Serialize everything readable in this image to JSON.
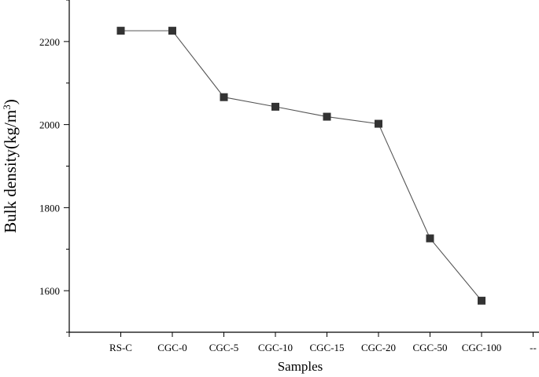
{
  "chart_data": {
    "type": "line",
    "title": "",
    "xlabel": "Samples",
    "ylabel": {
      "base": "Bulk density(kg/m",
      "sup": "3",
      "close": ")"
    },
    "categories": [
      "RS-C",
      "CGC-0",
      "CGC-5",
      "CGC-10",
      "CGC-15",
      "CGC-20",
      "CGC-50",
      "CGC-100"
    ],
    "trailing_category": "--",
    "series": [
      {
        "values": [
          2226,
          2226,
          2066,
          2043,
          2019,
          2002,
          1726,
          1576
        ]
      }
    ],
    "yticks": [
      1600,
      1800,
      2000,
      2200
    ],
    "ylim": [
      1500,
      2300
    ],
    "grid": false,
    "legend": "none",
    "colors": {
      "line": "#555555",
      "marker": "#333333",
      "axis": "#000000"
    }
  }
}
